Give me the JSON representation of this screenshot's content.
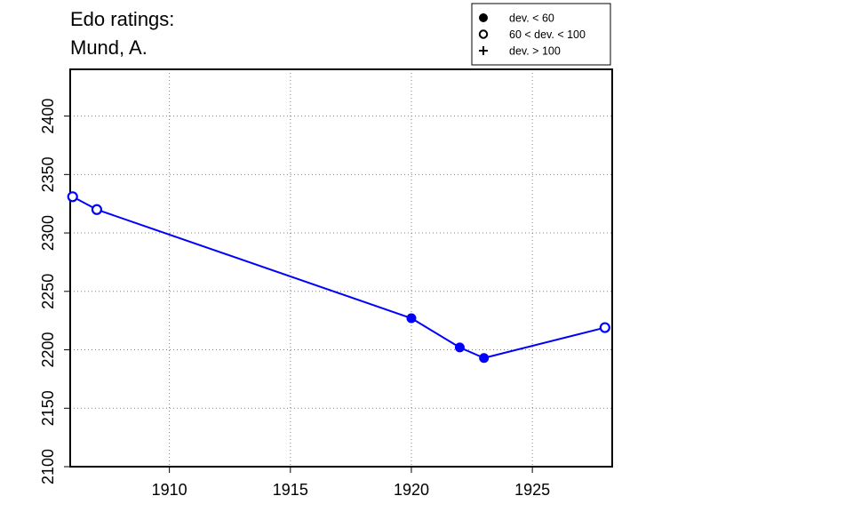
{
  "title_lines": [
    "Edo ratings:",
    "Mund, A."
  ],
  "legend": {
    "placement": "top-right",
    "items": [
      {
        "marker": "filled-circle",
        "label": "dev. < 60"
      },
      {
        "marker": "open-circle",
        "label": "60 < dev. < 100"
      },
      {
        "marker": "plus",
        "label": "dev. > 100"
      }
    ]
  },
  "colors": {
    "series": "#0000ff",
    "axis": "#000000",
    "grid": "#808080"
  },
  "chart_data": {
    "type": "line",
    "title": "Edo ratings:\nMund, A.",
    "xlabel": "",
    "ylabel": "",
    "xlim": [
      1905.9,
      1928.3
    ],
    "ylim": [
      2100,
      2440
    ],
    "xticks": [
      1910,
      1915,
      1920,
      1925
    ],
    "yticks": [
      2100,
      2150,
      2200,
      2250,
      2300,
      2350,
      2400
    ],
    "grid": true,
    "series": [
      {
        "x": [
          1906,
          1907,
          1920,
          1922,
          1923,
          1928
        ],
        "y": [
          2331,
          2320,
          2227,
          2202,
          2193,
          2219
        ],
        "markers": [
          "open-circle",
          "open-circle",
          "filled-circle",
          "filled-circle",
          "filled-circle",
          "open-circle"
        ]
      }
    ]
  }
}
